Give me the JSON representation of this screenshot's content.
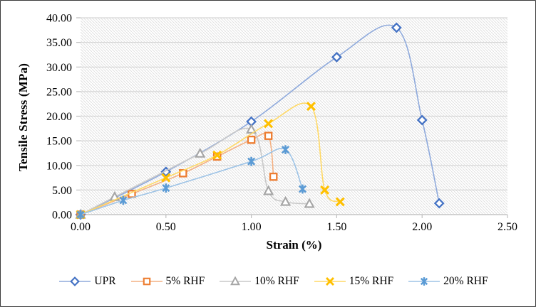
{
  "chart_data": {
    "type": "line",
    "title": "",
    "xlabel": "Strain (%)",
    "ylabel": "Tensile Stress (MPa)",
    "xlim": [
      0,
      2.5
    ],
    "ylim": [
      0,
      40
    ],
    "x_ticks": {
      "values": [
        0,
        0.5,
        1.0,
        1.5,
        2.0,
        2.5
      ],
      "labels": [
        "0.00",
        "0.50",
        "1.00",
        "1.50",
        "2.00",
        "2.50"
      ]
    },
    "y_ticks": {
      "values": [
        0,
        5,
        10,
        15,
        20,
        25,
        30,
        35,
        40
      ],
      "labels": [
        "0.00",
        "5.00",
        "10.00",
        "15.00",
        "20.00",
        "25.00",
        "30.00",
        "35.00",
        "40.00"
      ]
    },
    "grid": "horizontal",
    "plot_background": "light-downward-diagonal-hatch",
    "legend_position": "bottom",
    "line_style": "smooth",
    "series": [
      {
        "name": "UPR",
        "marker": "diamond",
        "marker_color": "#4472C4",
        "line_color": "#8FAADC",
        "points": [
          [
            0,
            0
          ],
          [
            0.5,
            8.7
          ],
          [
            1.0,
            18.9
          ],
          [
            1.5,
            32.0
          ],
          [
            1.85,
            38.0
          ],
          [
            2.0,
            19.2
          ],
          [
            2.1,
            2.3
          ]
        ]
      },
      {
        "name": "5% RHF",
        "marker": "square",
        "marker_color": "#ED7D31",
        "line_color": "#F4B183",
        "points": [
          [
            0,
            0
          ],
          [
            0.3,
            4.2
          ],
          [
            0.6,
            8.4
          ],
          [
            0.8,
            11.8
          ],
          [
            1.0,
            15.2
          ],
          [
            1.1,
            16.0
          ],
          [
            1.13,
            7.7
          ]
        ]
      },
      {
        "name": "10% RHF",
        "marker": "triangle",
        "marker_color": "#A5A5A5",
        "line_color": "#C9C9C9",
        "points": [
          [
            0,
            0
          ],
          [
            0.2,
            3.6
          ],
          [
            0.7,
            12.4
          ],
          [
            1.0,
            17.3
          ],
          [
            1.1,
            4.8
          ],
          [
            1.2,
            2.6
          ],
          [
            1.34,
            2.2
          ]
        ]
      },
      {
        "name": "15% RHF",
        "marker": "x",
        "marker_color": "#FFC000",
        "line_color": "#FFD966",
        "points": [
          [
            0,
            0
          ],
          [
            0.5,
            7.5
          ],
          [
            0.8,
            12.1
          ],
          [
            1.1,
            18.5
          ],
          [
            1.35,
            22.0
          ],
          [
            1.43,
            5.0
          ],
          [
            1.52,
            2.6
          ]
        ]
      },
      {
        "name": "20% RHF",
        "marker": "star",
        "marker_color": "#5B9BD5",
        "line_color": "#9DC3E6",
        "points": [
          [
            0,
            0
          ],
          [
            0.25,
            2.9
          ],
          [
            0.5,
            5.4
          ],
          [
            1.0,
            10.8
          ],
          [
            1.2,
            13.2
          ],
          [
            1.3,
            5.2
          ]
        ]
      }
    ],
    "colors": {
      "gridline": "#D6D6D6",
      "axis_line": "#BFBFBF",
      "hatch": "#E0E0E0",
      "tick_text": "#000000"
    }
  }
}
